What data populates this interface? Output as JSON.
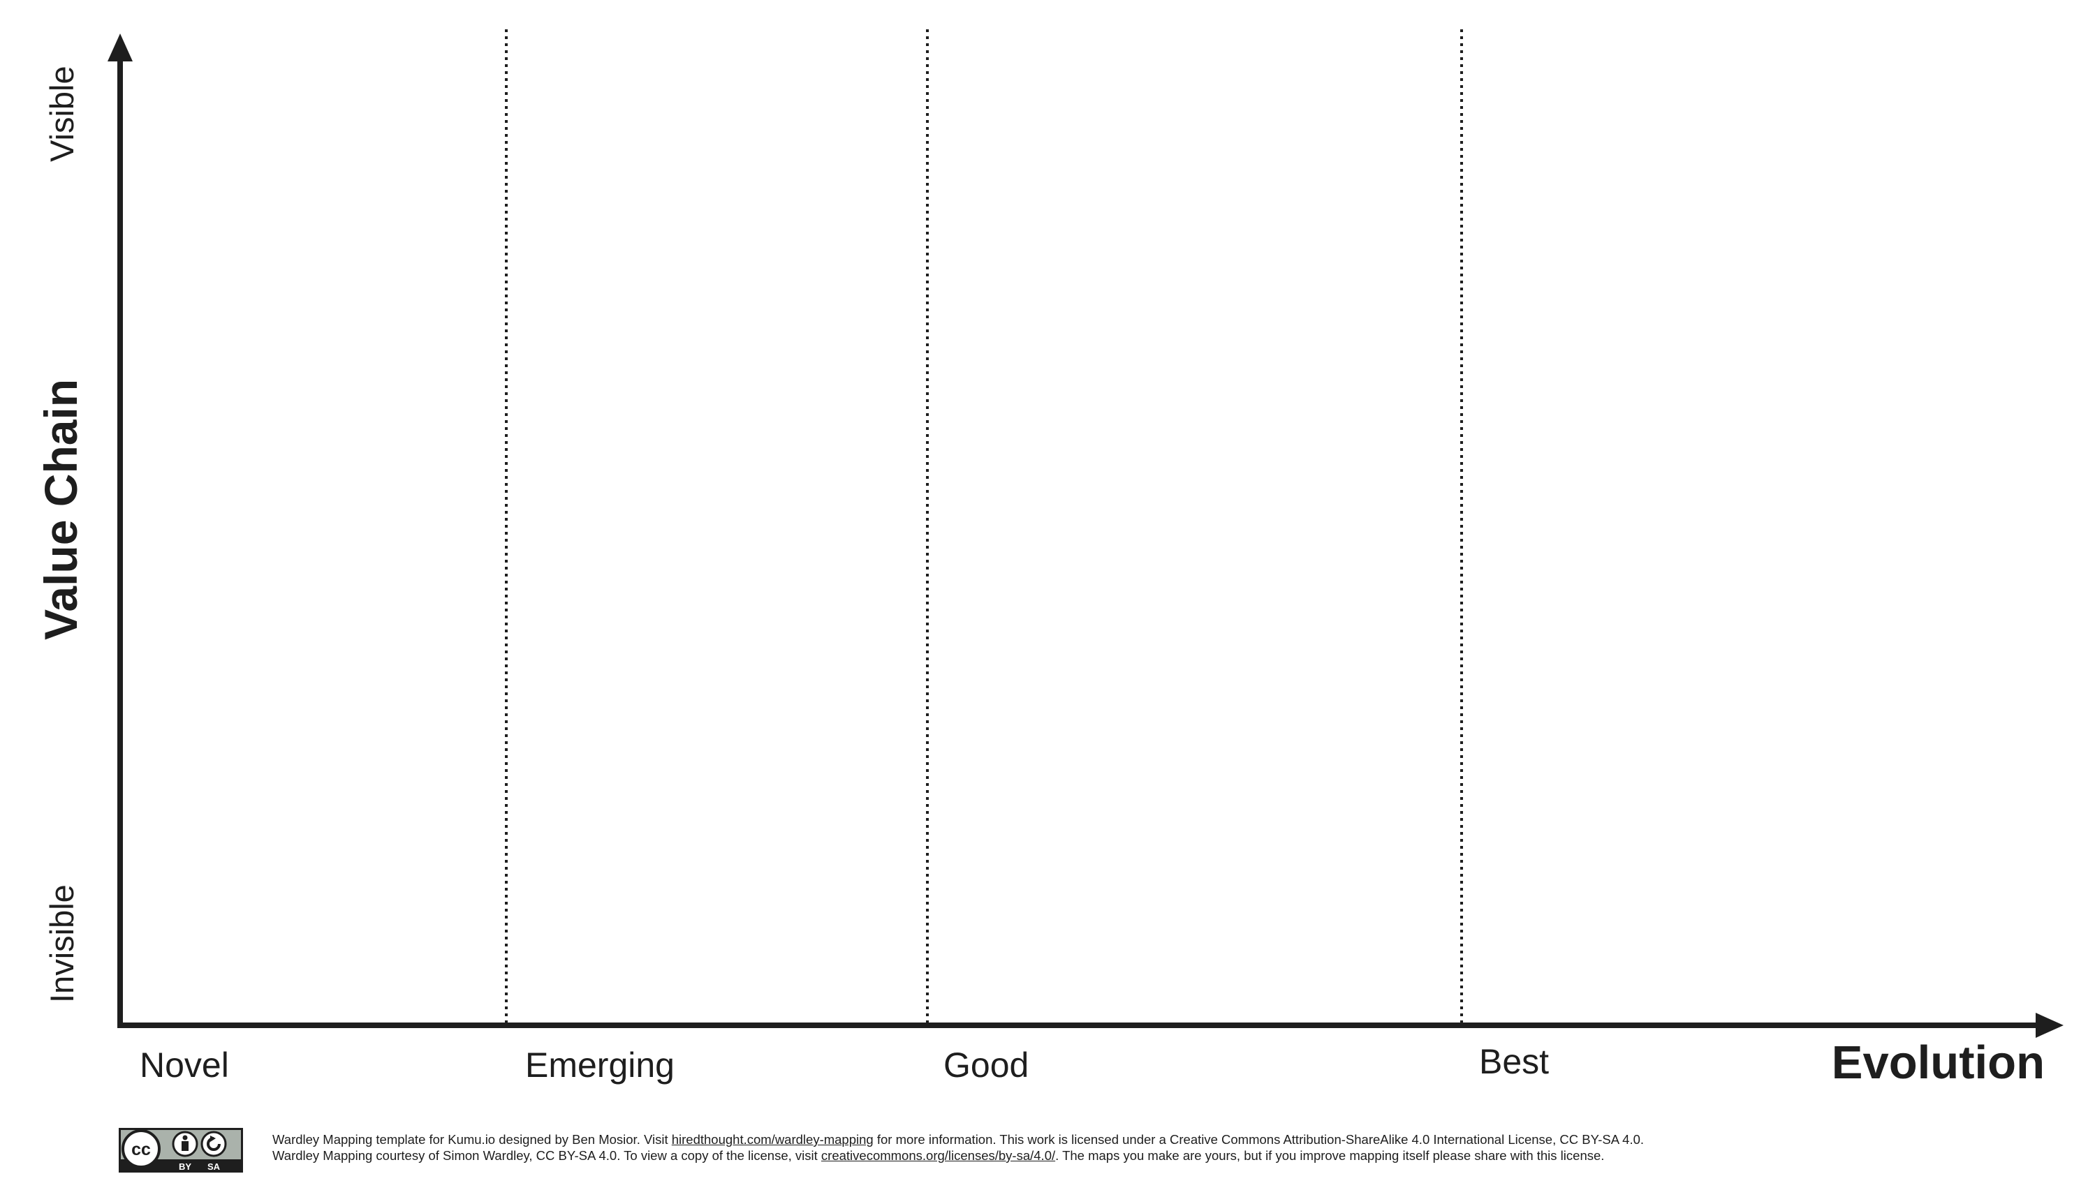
{
  "map": {
    "y_axis": {
      "title": "Value Chain",
      "top_label": "Visible",
      "bottom_label": "Invisible"
    },
    "x_axis": {
      "title": "Evolution"
    },
    "stages": [
      "Novel",
      "Emerging",
      "Good",
      "Best"
    ],
    "stage_boundaries": [
      0.2,
      0.4,
      0.7
    ],
    "line_color": "#1e1e1e"
  },
  "footer": {
    "line1_prefix": "Wardley Mapping template for Kumu.io designed by Ben Mosior. Visit ",
    "line1_link": "hiredthought.com/wardley-mapping",
    "line1_suffix": " for more information. This work is licensed under a Creative Commons Attribution-ShareAlike 4.0 International License, CC BY-SA 4.0.",
    "line2_prefix": "Wardley Mapping courtesy of Simon Wardley, CC BY-SA 4.0. To view a copy of the license, visit ",
    "line2_link": "creativecommons.org/licenses/by-sa/4.0/",
    "line2_suffix": ". The maps you make are yours, but if you improve mapping itself please share with this license."
  },
  "license_badge": {
    "label_cc": "cc",
    "label_by": "BY",
    "label_sa": "SA"
  }
}
